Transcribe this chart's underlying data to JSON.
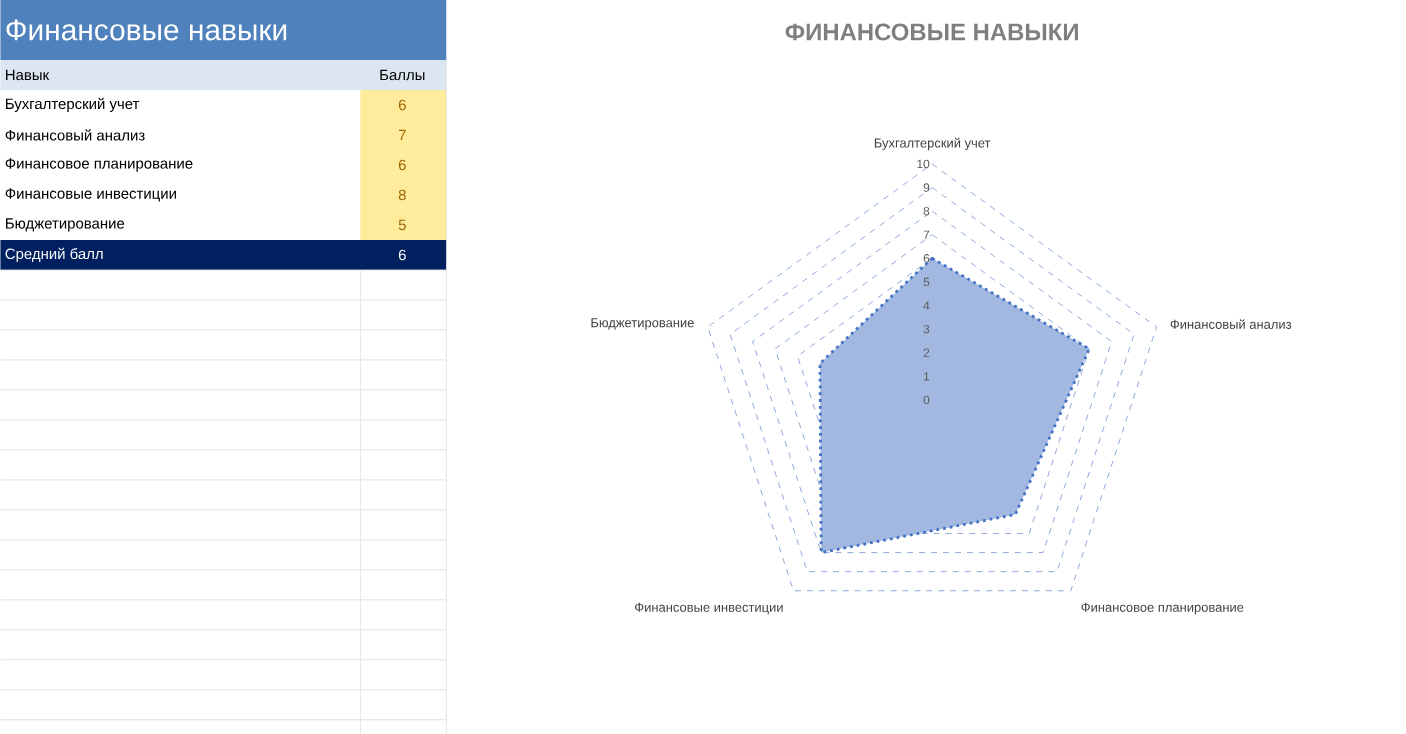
{
  "chart_data": {
    "type": "radar",
    "title": "ФИНАНСОВЫЕ НАВЫКИ",
    "categories": [
      "Бухгалтерский учет",
      "Финансовый анализ",
      "Финансовое планирование",
      "Финансовые инвестиции",
      "Бюджетирование"
    ],
    "series": [
      {
        "color": "#4472c4",
        "values": [
          6,
          7,
          6,
          8,
          5
        ]
      }
    ],
    "ylim": [
      0,
      10
    ],
    "yticks": [
      0,
      1,
      2,
      3,
      4,
      5,
      6,
      7,
      8,
      9,
      10
    ],
    "grid": true,
    "line_style": "dotted",
    "annotations": [
      "Финансовые навыки",
      "Навык",
      "Баллы",
      "Средний балл",
      "6",
      "6",
      "7",
      "6",
      "8",
      "5"
    ]
  }
}
